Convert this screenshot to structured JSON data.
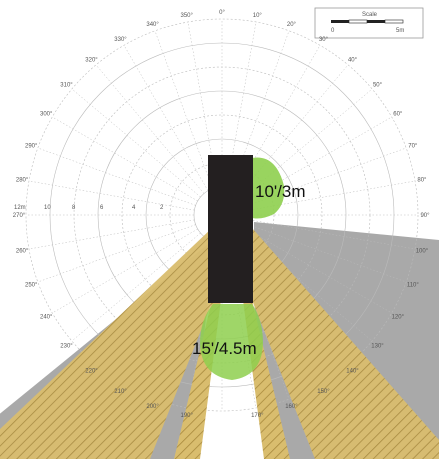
{
  "diagram": {
    "zone_labels": {
      "side_distance": "10'/3m",
      "rear_distance": "15'/4.5m"
    },
    "scale_bar": {
      "label": "Scale",
      "start": "0",
      "end": "5m"
    },
    "bearing_labels": [
      "0°",
      "10°",
      "20°",
      "30°",
      "40°",
      "50°",
      "60°",
      "70°",
      "80°",
      "90°",
      "100°",
      "110°",
      "120°",
      "130°",
      "140°",
      "150°",
      "160°",
      "170°",
      "190°",
      "200°",
      "210°",
      "220°",
      "230°",
      "240°",
      "250°",
      "260°",
      "270°",
      "280°",
      "290°",
      "300°",
      "310°",
      "320°",
      "330°",
      "340°",
      "350°"
    ],
    "range_labels": [
      "12m",
      "10",
      "8",
      "6",
      "4",
      "2"
    ],
    "colors": {
      "background": "#ffffff",
      "grid": "#bbbbbb",
      "blind_zone_gray": "#a9a9a9",
      "hatched_zone": "#d9bd6e",
      "hatch_lines": "#a88a3d",
      "close_zone_green": "#8ecf4e",
      "vehicle": "#231f20"
    }
  }
}
